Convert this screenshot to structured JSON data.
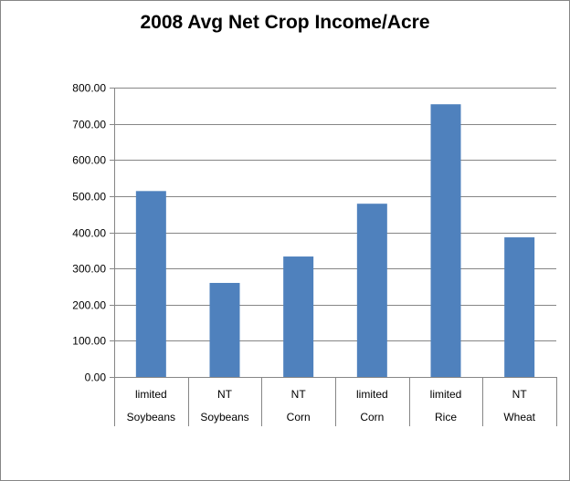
{
  "chart_data": {
    "type": "bar",
    "title": "2008 Avg Net Crop Income/Acre",
    "categories": [
      [
        "limited",
        "Soybeans"
      ],
      [
        "NT",
        "Soybeans"
      ],
      [
        "NT",
        "Corn"
      ],
      [
        "limited",
        "Corn"
      ],
      [
        "limited",
        "Rice"
      ],
      [
        "NT",
        "Wheat"
      ]
    ],
    "values": [
      514,
      260,
      333,
      479,
      754,
      386
    ],
    "ylim": [
      0,
      800
    ],
    "yticks": [
      "0.00",
      "100.00",
      "200.00",
      "300.00",
      "400.00",
      "500.00",
      "600.00",
      "700.00",
      "800.00"
    ],
    "grid": true,
    "legend": "none",
    "xlabel": "",
    "ylabel": "",
    "colors": {
      "bar": "#4f81bd",
      "grid": "#868686",
      "axis": "#868686"
    }
  }
}
